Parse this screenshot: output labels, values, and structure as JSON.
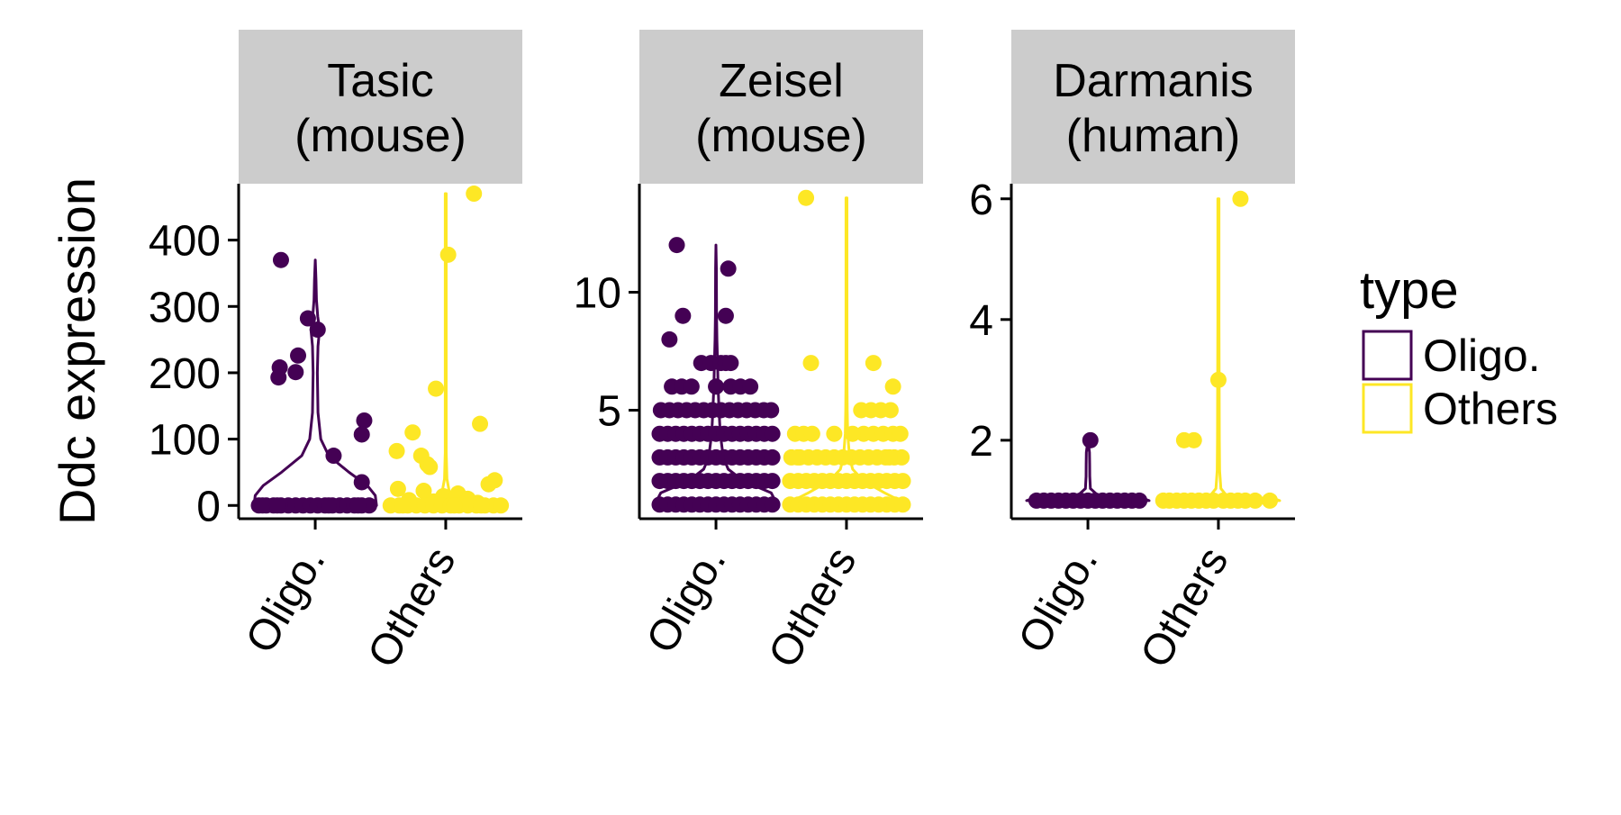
{
  "chart_data": {
    "type": "violin",
    "ylabel": "Ddc expression",
    "xlabel": "",
    "categories": [
      "Oligo.",
      "Others"
    ],
    "colors": {
      "Oligo.": "#440154",
      "Others": "#FDE725"
    },
    "strip_fill": "#cccccc",
    "legend": {
      "title": "type",
      "position": "right",
      "entries": [
        {
          "label": "Oligo.",
          "color": "#440154"
        },
        {
          "label": "Others",
          "color": "#FDE725"
        }
      ]
    },
    "facets": [
      {
        "title_line1": "Tasic",
        "title_line2": "(mouse)",
        "ylim": [
          -20,
          485
        ],
        "yticks": [
          0,
          100,
          200,
          300,
          400
        ],
        "ytick_labels": [
          "0",
          "100",
          "200",
          "300",
          "400"
        ],
        "violins": [
          {
            "category": "Oligo.",
            "max": 370,
            "profile": [
              [
                0,
                1
              ],
              [
                15,
                0.98
              ],
              [
                30,
                0.85
              ],
              [
                50,
                0.55
              ],
              [
                75,
                0.22
              ],
              [
                100,
                0.09
              ],
              [
                140,
                0.045
              ],
              [
                200,
                0.035
              ],
              [
                240,
                0.045
              ],
              [
                265,
                0.07
              ],
              [
                285,
                0.04
              ],
              [
                310,
                0.02
              ],
              [
                340,
                0.012
              ],
              [
                370,
                0
              ]
            ]
          },
          {
            "category": "Others",
            "max": 470,
            "profile": [
              [
                0,
                1
              ],
              [
                3,
                0.9
              ],
              [
                7,
                0.55
              ],
              [
                12,
                0.18
              ],
              [
                20,
                0.06
              ],
              [
                40,
                0.02
              ],
              [
                80,
                0.008
              ],
              [
                470,
                0.008
              ]
            ]
          }
        ],
        "points": [
          {
            "category": "Oligo.",
            "values": [
              370,
              208,
              193,
              201,
              226,
              282,
              265,
              75,
              128,
              107,
              35,
              0,
              0,
              0,
              0,
              0,
              0,
              0,
              0,
              0,
              0,
              0,
              0,
              0,
              0,
              0,
              0,
              0,
              0,
              0,
              0
            ],
            "jitter": [
              -0.28,
              -0.29,
              -0.3,
              -0.16,
              -0.14,
              -0.06,
              0.02,
              0.15,
              0.4,
              0.38,
              0.38,
              -0.46,
              -0.4,
              -0.34,
              -0.28,
              -0.22,
              -0.16,
              -0.1,
              -0.04,
              0.02,
              0.08,
              0.14,
              0.2,
              0.26,
              0.32,
              0.38,
              0.44,
              -0.43,
              -0.31,
              0.11,
              0.35
            ]
          },
          {
            "category": "Others",
            "values": [
              470,
              378,
              176,
              123,
              110,
              82,
              75,
              62,
              58,
              38,
              32,
              25,
              22,
              18,
              14,
              12,
              10,
              8,
              6,
              4,
              2,
              0,
              0,
              0,
              0,
              0,
              0,
              0,
              0,
              0,
              0,
              0,
              0,
              0,
              0,
              0,
              0,
              0
            ],
            "jitter": [
              0.23,
              0.02,
              -0.08,
              0.28,
              -0.27,
              -0.4,
              -0.2,
              -0.15,
              -0.13,
              0.4,
              0.35,
              -0.39,
              -0.18,
              0.1,
              -0.02,
              0.08,
              0.18,
              -0.3,
              -0.1,
              0.26,
              0.12,
              -0.45,
              -0.38,
              -0.31,
              -0.24,
              -0.17,
              -0.1,
              -0.03,
              0.04,
              0.11,
              0.18,
              0.25,
              0.32,
              0.39,
              0.45,
              -0.35,
              0.07,
              0.29
            ]
          }
        ]
      },
      {
        "title_line1": "Zeisel",
        "title_line2": "(mouse)",
        "ylim": [
          0.4,
          14.6
        ],
        "yticks": [
          5,
          10
        ],
        "ytick_labels": [
          "5",
          "10"
        ],
        "violins": [
          {
            "category": "Oligo.",
            "max": 12,
            "profile": [
              [
                1,
                1
              ],
              [
                1.5,
                0.9
              ],
              [
                2,
                0.45
              ],
              [
                2.5,
                0.2
              ],
              [
                3,
                0.12
              ],
              [
                4,
                0.07
              ],
              [
                5,
                0.05
              ],
              [
                6,
                0.035
              ],
              [
                7,
                0.025
              ],
              [
                8,
                0.015
              ],
              [
                9,
                0.01
              ],
              [
                10,
                0.008
              ],
              [
                11,
                0.007
              ],
              [
                12,
                0
              ]
            ]
          },
          {
            "category": "Others",
            "max": 14,
            "profile": [
              [
                1,
                1
              ],
              [
                1.5,
                0.62
              ],
              [
                2,
                0.28
              ],
              [
                2.5,
                0.1
              ],
              [
                3,
                0.05
              ],
              [
                4,
                0.02
              ],
              [
                5,
                0.012
              ],
              [
                6,
                0.01
              ],
              [
                7,
                0.008
              ],
              [
                14,
                0.008
              ]
            ]
          }
        ],
        "points": [
          {
            "category": "Oligo.",
            "values": [
              12,
              11,
              9,
              9,
              8,
              7,
              7,
              7,
              7,
              7,
              6,
              6,
              6,
              6,
              6,
              6,
              6,
              5,
              5,
              5,
              5,
              5,
              5,
              5,
              5,
              5,
              5,
              5,
              5,
              5,
              5
            ],
            "jitter": [
              -0.32,
              0.1,
              -0.27,
              0.08,
              -0.38,
              -0.12,
              -0.04,
              0.04,
              0.08,
              0.12,
              -0.36,
              -0.28,
              -0.2,
              0.0,
              0.12,
              0.2,
              0.28,
              -0.45,
              -0.38,
              -0.31,
              -0.24,
              -0.17,
              -0.1,
              -0.03,
              0.04,
              0.11,
              0.18,
              0.25,
              0.32,
              0.39,
              0.45
            ]
          },
          {
            "category": "Others",
            "values": [
              14,
              7,
              7,
              6,
              5,
              5,
              5,
              5,
              4,
              4,
              4,
              4,
              4,
              4,
              4,
              4,
              4,
              4,
              3,
              3,
              3,
              3,
              3,
              3,
              3,
              3,
              3,
              3,
              3,
              3,
              3,
              3,
              3,
              3
            ],
            "jitter": [
              -0.33,
              -0.29,
              0.22,
              0.38,
              0.12,
              0.2,
              0.28,
              0.36,
              -0.42,
              -0.35,
              -0.28,
              -0.1,
              0.14,
              0.22,
              0.3,
              0.38,
              0.44,
              0.05,
              -0.45,
              -0.38,
              -0.31,
              -0.24,
              -0.17,
              -0.1,
              -0.03,
              0.04,
              0.11,
              0.18,
              0.25,
              0.32,
              0.39,
              0.45,
              -0.4,
              0.35
            ]
          }
        ],
        "dense_rows": [
          {
            "category": "Oligo.",
            "values": [
              1,
              2,
              3,
              4
            ],
            "count": 15
          },
          {
            "category": "Others",
            "values": [
              1,
              2
            ],
            "count": 15
          }
        ]
      },
      {
        "title_line1": "Darmanis",
        "title_line2": "(human)",
        "ylim": [
          0.7,
          6.25
        ],
        "yticks": [
          2,
          4,
          6
        ],
        "ytick_labels": [
          "2",
          "4",
          "6"
        ],
        "violins": [
          {
            "category": "Oligo.",
            "max": 2,
            "profile": [
              [
                1,
                1
              ],
              [
                1.02,
                0.95
              ],
              [
                1.05,
                0.6
              ],
              [
                1.1,
                0.15
              ],
              [
                1.2,
                0.04
              ],
              [
                1.4,
                0.03
              ],
              [
                1.6,
                0.028
              ],
              [
                1.8,
                0.025
              ],
              [
                2,
                0
              ]
            ]
          },
          {
            "category": "Others",
            "max": 6,
            "profile": [
              [
                1,
                1
              ],
              [
                1.02,
                0.95
              ],
              [
                1.05,
                0.55
              ],
              [
                1.1,
                0.12
              ],
              [
                1.2,
                0.04
              ],
              [
                1.5,
                0.02
              ],
              [
                2,
                0.015
              ],
              [
                3,
                0.012
              ],
              [
                4,
                0.01
              ],
              [
                6,
                0.01
              ]
            ]
          }
        ],
        "points": [
          {
            "category": "Oligo.",
            "values": [
              2,
              1,
              1,
              1,
              1,
              1,
              1,
              1,
              1,
              1,
              1,
              1,
              1,
              1,
              1,
              1
            ],
            "jitter": [
              0.02,
              -0.42,
              -0.36,
              -0.3,
              -0.24,
              -0.18,
              -0.12,
              -0.06,
              0.0,
              0.06,
              0.12,
              0.18,
              0.24,
              0.3,
              0.36,
              0.42
            ]
          },
          {
            "category": "Others",
            "values": [
              6,
              3,
              2,
              2,
              1,
              1,
              1,
              1,
              1,
              1,
              1,
              1,
              1,
              1,
              1,
              1,
              1,
              1
            ],
            "jitter": [
              0.18,
              0.0,
              -0.28,
              -0.2,
              -0.45,
              -0.4,
              -0.34,
              -0.28,
              -0.22,
              -0.16,
              -0.1,
              -0.04,
              0.04,
              0.1,
              0.16,
              0.22,
              0.3,
              0.42
            ]
          }
        ]
      }
    ]
  }
}
